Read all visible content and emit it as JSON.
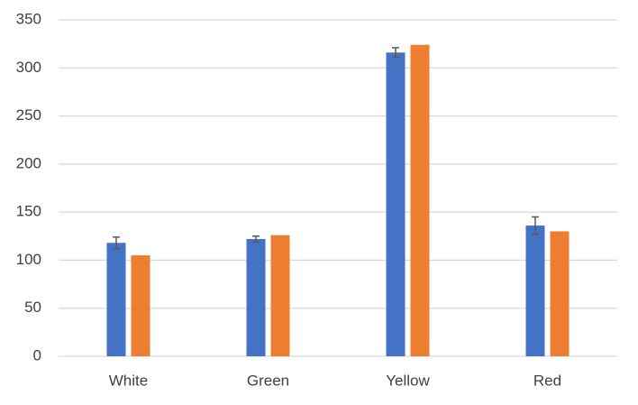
{
  "chart_data": {
    "type": "bar",
    "categories": [
      "White",
      "Green",
      "Yellow",
      "Red"
    ],
    "series": [
      {
        "color": "#4472c4",
        "values": [
          118,
          122,
          316,
          136
        ],
        "errors": [
          6,
          3,
          5,
          9
        ]
      },
      {
        "color": "#ed7d31",
        "values": [
          105,
          126,
          324,
          130
        ]
      }
    ],
    "ylim": [
      0,
      350
    ],
    "yticks": [
      0,
      50,
      100,
      150,
      200,
      250,
      300,
      350
    ],
    "grid": true,
    "error_bar_color": "#595959"
  }
}
